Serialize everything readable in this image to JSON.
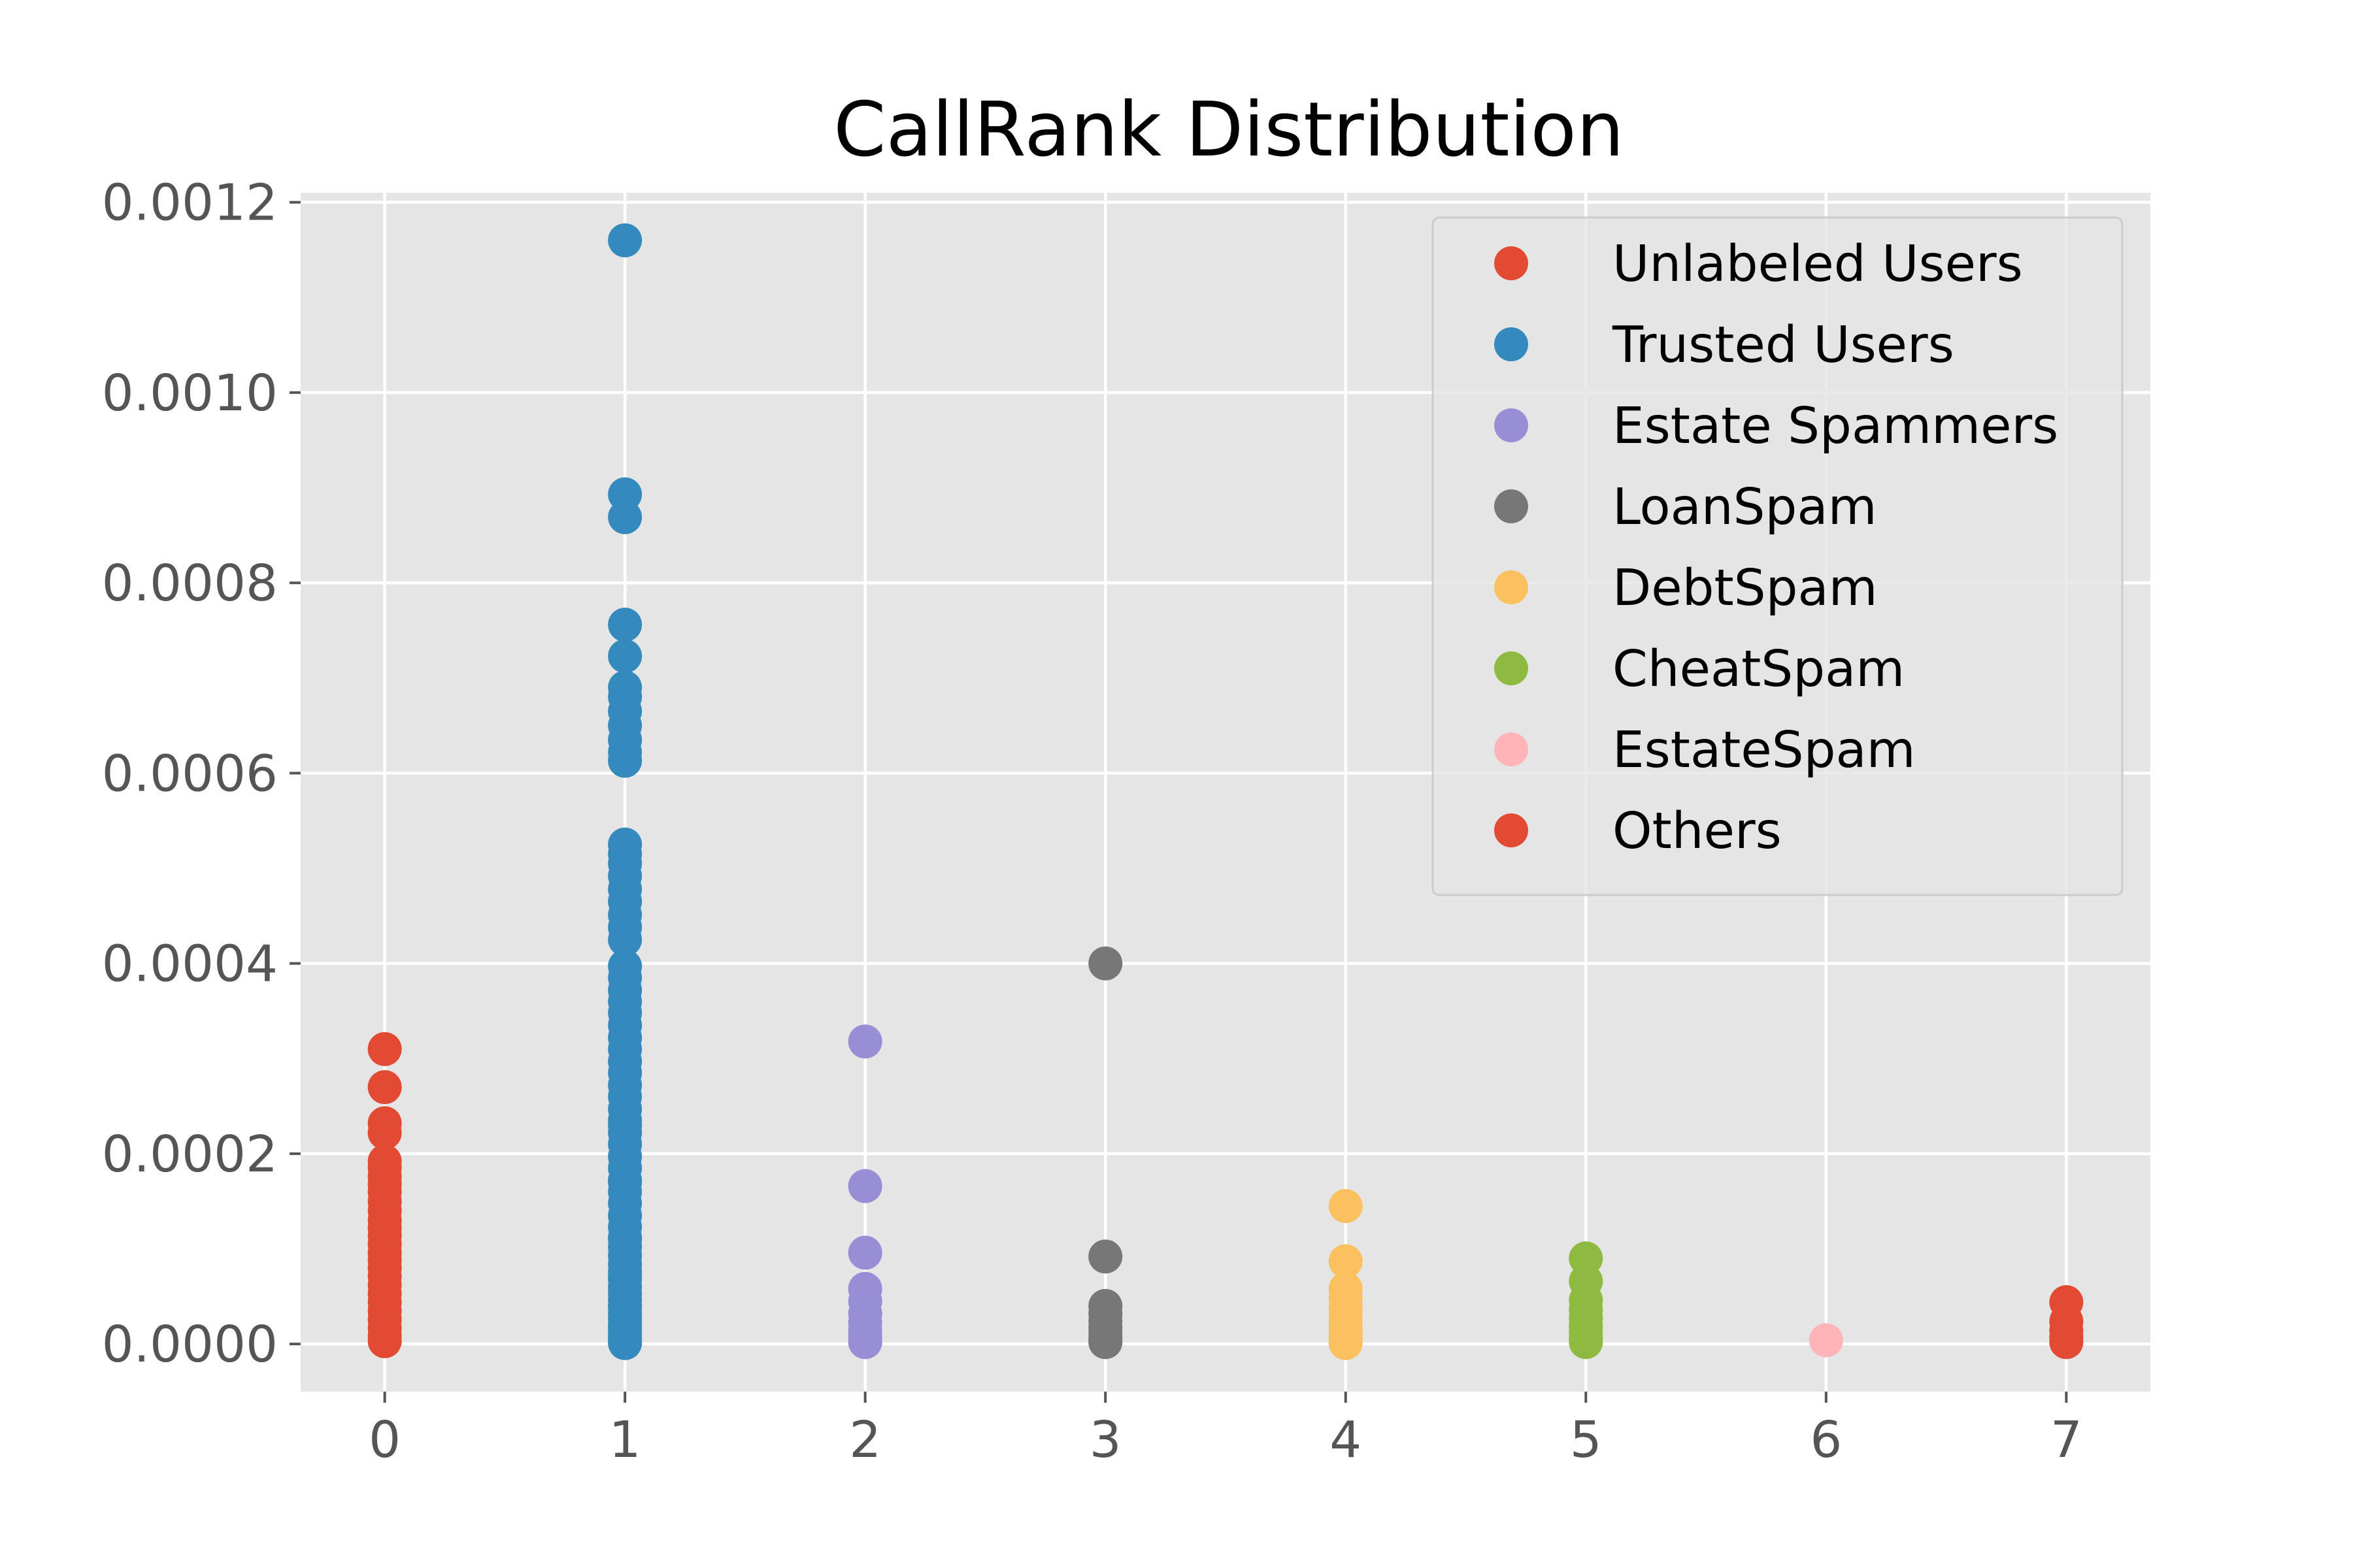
{
  "chart_data": {
    "type": "scatter",
    "title": "CallRank Distribution",
    "xlabel": "",
    "ylabel": "",
    "xlim": [
      -0.35,
      7.35
    ],
    "ylim": [
      -5e-05,
      0.00121
    ],
    "xticks": [
      0,
      1,
      2,
      3,
      4,
      5,
      6,
      7
    ],
    "xtick_labels": [
      "0",
      "1",
      "2",
      "3",
      "4",
      "5",
      "6",
      "7"
    ],
    "yticks": [
      0,
      0.0002,
      0.0004,
      0.0006,
      0.0008,
      0.001,
      0.0012
    ],
    "ytick_labels": [
      "0.0000",
      "0.0002",
      "0.0004",
      "0.0006",
      "0.0008",
      "0.0010",
      "0.0012"
    ],
    "grid": true,
    "legend_position": "top-right",
    "series": [
      {
        "name": "Unlabeled Users",
        "color": "#E24A33",
        "x": [
          0,
          0,
          0,
          0,
          0,
          0,
          0,
          0,
          0,
          0,
          0,
          0,
          0,
          0,
          0,
          0,
          0,
          0,
          0,
          0,
          0,
          0,
          0,
          0,
          0,
          0,
          0
        ],
        "y": [
          0.00031,
          0.00027,
          0.000232,
          0.000222,
          0.000192,
          0.000185,
          0.000176,
          0.000168,
          0.00016,
          0.00015,
          0.00014,
          0.00013,
          0.000122,
          0.000114,
          0.000105,
          9.6e-05,
          8.8e-05,
          8e-05,
          7.1e-05,
          6.2e-05,
          5.3e-05,
          4.4e-05,
          3.5e-05,
          2.6e-05,
          1.7e-05,
          9e-06,
          3e-06
        ]
      },
      {
        "name": "Trusted Users",
        "color": "#348ABD",
        "x": [
          1,
          1,
          1,
          1,
          1,
          1,
          1,
          1,
          1,
          1,
          1,
          1,
          1,
          1,
          1,
          1,
          1,
          1,
          1,
          1,
          1,
          1,
          1,
          1,
          1,
          1,
          1,
          1,
          1,
          1,
          1,
          1,
          1,
          1,
          1,
          1,
          1,
          1,
          1,
          1,
          1,
          1,
          1,
          1,
          1,
          1,
          1,
          1,
          1,
          1,
          1,
          1,
          1,
          1,
          1,
          1,
          1,
          1,
          1,
          1,
          1,
          1,
          1,
          1,
          1,
          1,
          1,
          1
        ],
        "y": [
          0.00116,
          0.000893,
          0.000869,
          0.000756,
          0.000723,
          0.00069,
          0.00068,
          0.000665,
          0.00065,
          0.000635,
          0.000622,
          0.000613,
          0.000525,
          0.000515,
          0.000505,
          0.000492,
          0.000478,
          0.000465,
          0.000451,
          0.000438,
          0.000425,
          0.000397,
          0.000385,
          0.000372,
          0.00036,
          0.000348,
          0.000335,
          0.000322,
          0.00031,
          0.000297,
          0.000285,
          0.000272,
          0.00026,
          0.000247,
          0.000235,
          0.000222,
          0.00021,
          0.000197,
          0.000185,
          0.000172,
          0.00016,
          0.000148,
          0.000135,
          0.000123,
          0.000112,
          0.000102,
          9.3e-05,
          8.4e-05,
          7.6e-05,
          6.8e-05,
          6e-05,
          5.3e-05,
          4.6e-05,
          3.9e-05,
          3.2e-05,
          2.6e-05,
          2e-05,
          1.5e-05,
          1e-05,
          6e-06,
          3e-06,
          1e-06,
          0.00023,
          0.00017,
          0.00011,
          7e-05,
          4e-05,
          1.8e-05
        ]
      },
      {
        "name": "Estate Spammers",
        "color": "#988ED5",
        "x": [
          2,
          2,
          2,
          2,
          2,
          2,
          2,
          2,
          2,
          2
        ],
        "y": [
          0.000318,
          0.000166,
          9.6e-05,
          5.8e-05,
          4.5e-05,
          3.2e-05,
          2.2e-05,
          1.4e-05,
          7e-06,
          2e-06
        ]
      },
      {
        "name": "LoanSpam",
        "color": "#777777",
        "x": [
          3,
          3,
          3,
          3,
          3,
          3,
          3,
          3,
          3
        ],
        "y": [
          0.0004,
          9.2e-05,
          4e-05,
          3.2e-05,
          2.4e-05,
          1.7e-05,
          1.1e-05,
          6e-06,
          2e-06
        ]
      },
      {
        "name": "DebtSpam",
        "color": "#FBC15E",
        "x": [
          4,
          4,
          4,
          4,
          4,
          4,
          4,
          4,
          4,
          4
        ],
        "y": [
          0.000145,
          8.7e-05,
          5.8e-05,
          4.8e-05,
          3.8e-05,
          2.9e-05,
          2e-05,
          1.2e-05,
          6e-06,
          1e-06
        ]
      },
      {
        "name": "CheatSpam",
        "color": "#8EBA42",
        "x": [
          5,
          5,
          5,
          5,
          5,
          5,
          5,
          5,
          5
        ],
        "y": [
          9e-05,
          6.6e-05,
          4.6e-05,
          3.6e-05,
          2.7e-05,
          1.9e-05,
          1.2e-05,
          6e-06,
          2e-06
        ]
      },
      {
        "name": "EstateSpam",
        "color": "#FFB5B8",
        "x": [
          6
        ],
        "y": [
          4e-06
        ]
      },
      {
        "name": "Others",
        "color": "#E24A33",
        "x": [
          7,
          7,
          7,
          7,
          7
        ],
        "y": [
          4.4e-05,
          2.4e-05,
          1.4e-05,
          7e-06,
          2e-06
        ]
      }
    ]
  }
}
